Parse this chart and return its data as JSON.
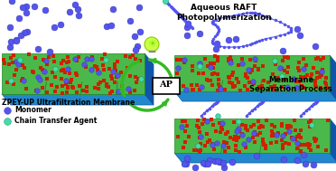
{
  "bg_color": "#ffffff",
  "text_title_top": "Aqueous RAFT\nPhotopolymerization",
  "text_membrane_label": "ZPEY-UP Ultrafiltration Membrane",
  "text_monomer": "Monomer",
  "text_cta": "Chain Transfer Agent",
  "text_membrane_sep": "Membrane\nSeparation Process",
  "text_ap": "AP",
  "membrane_green": "#4ab84a",
  "membrane_blue": "#2288cc",
  "membrane_blue_dark": "#1155aa",
  "membrane_green_dark": "#228822",
  "monomer_color": "#5555ee",
  "cta_color": "#44ddaa",
  "eosin_color": "#cc2200",
  "polymer_color": "#5555ee",
  "arrow_green": "#33bb22",
  "fig_width": 3.72,
  "fig_height": 1.89,
  "dpi": 100
}
